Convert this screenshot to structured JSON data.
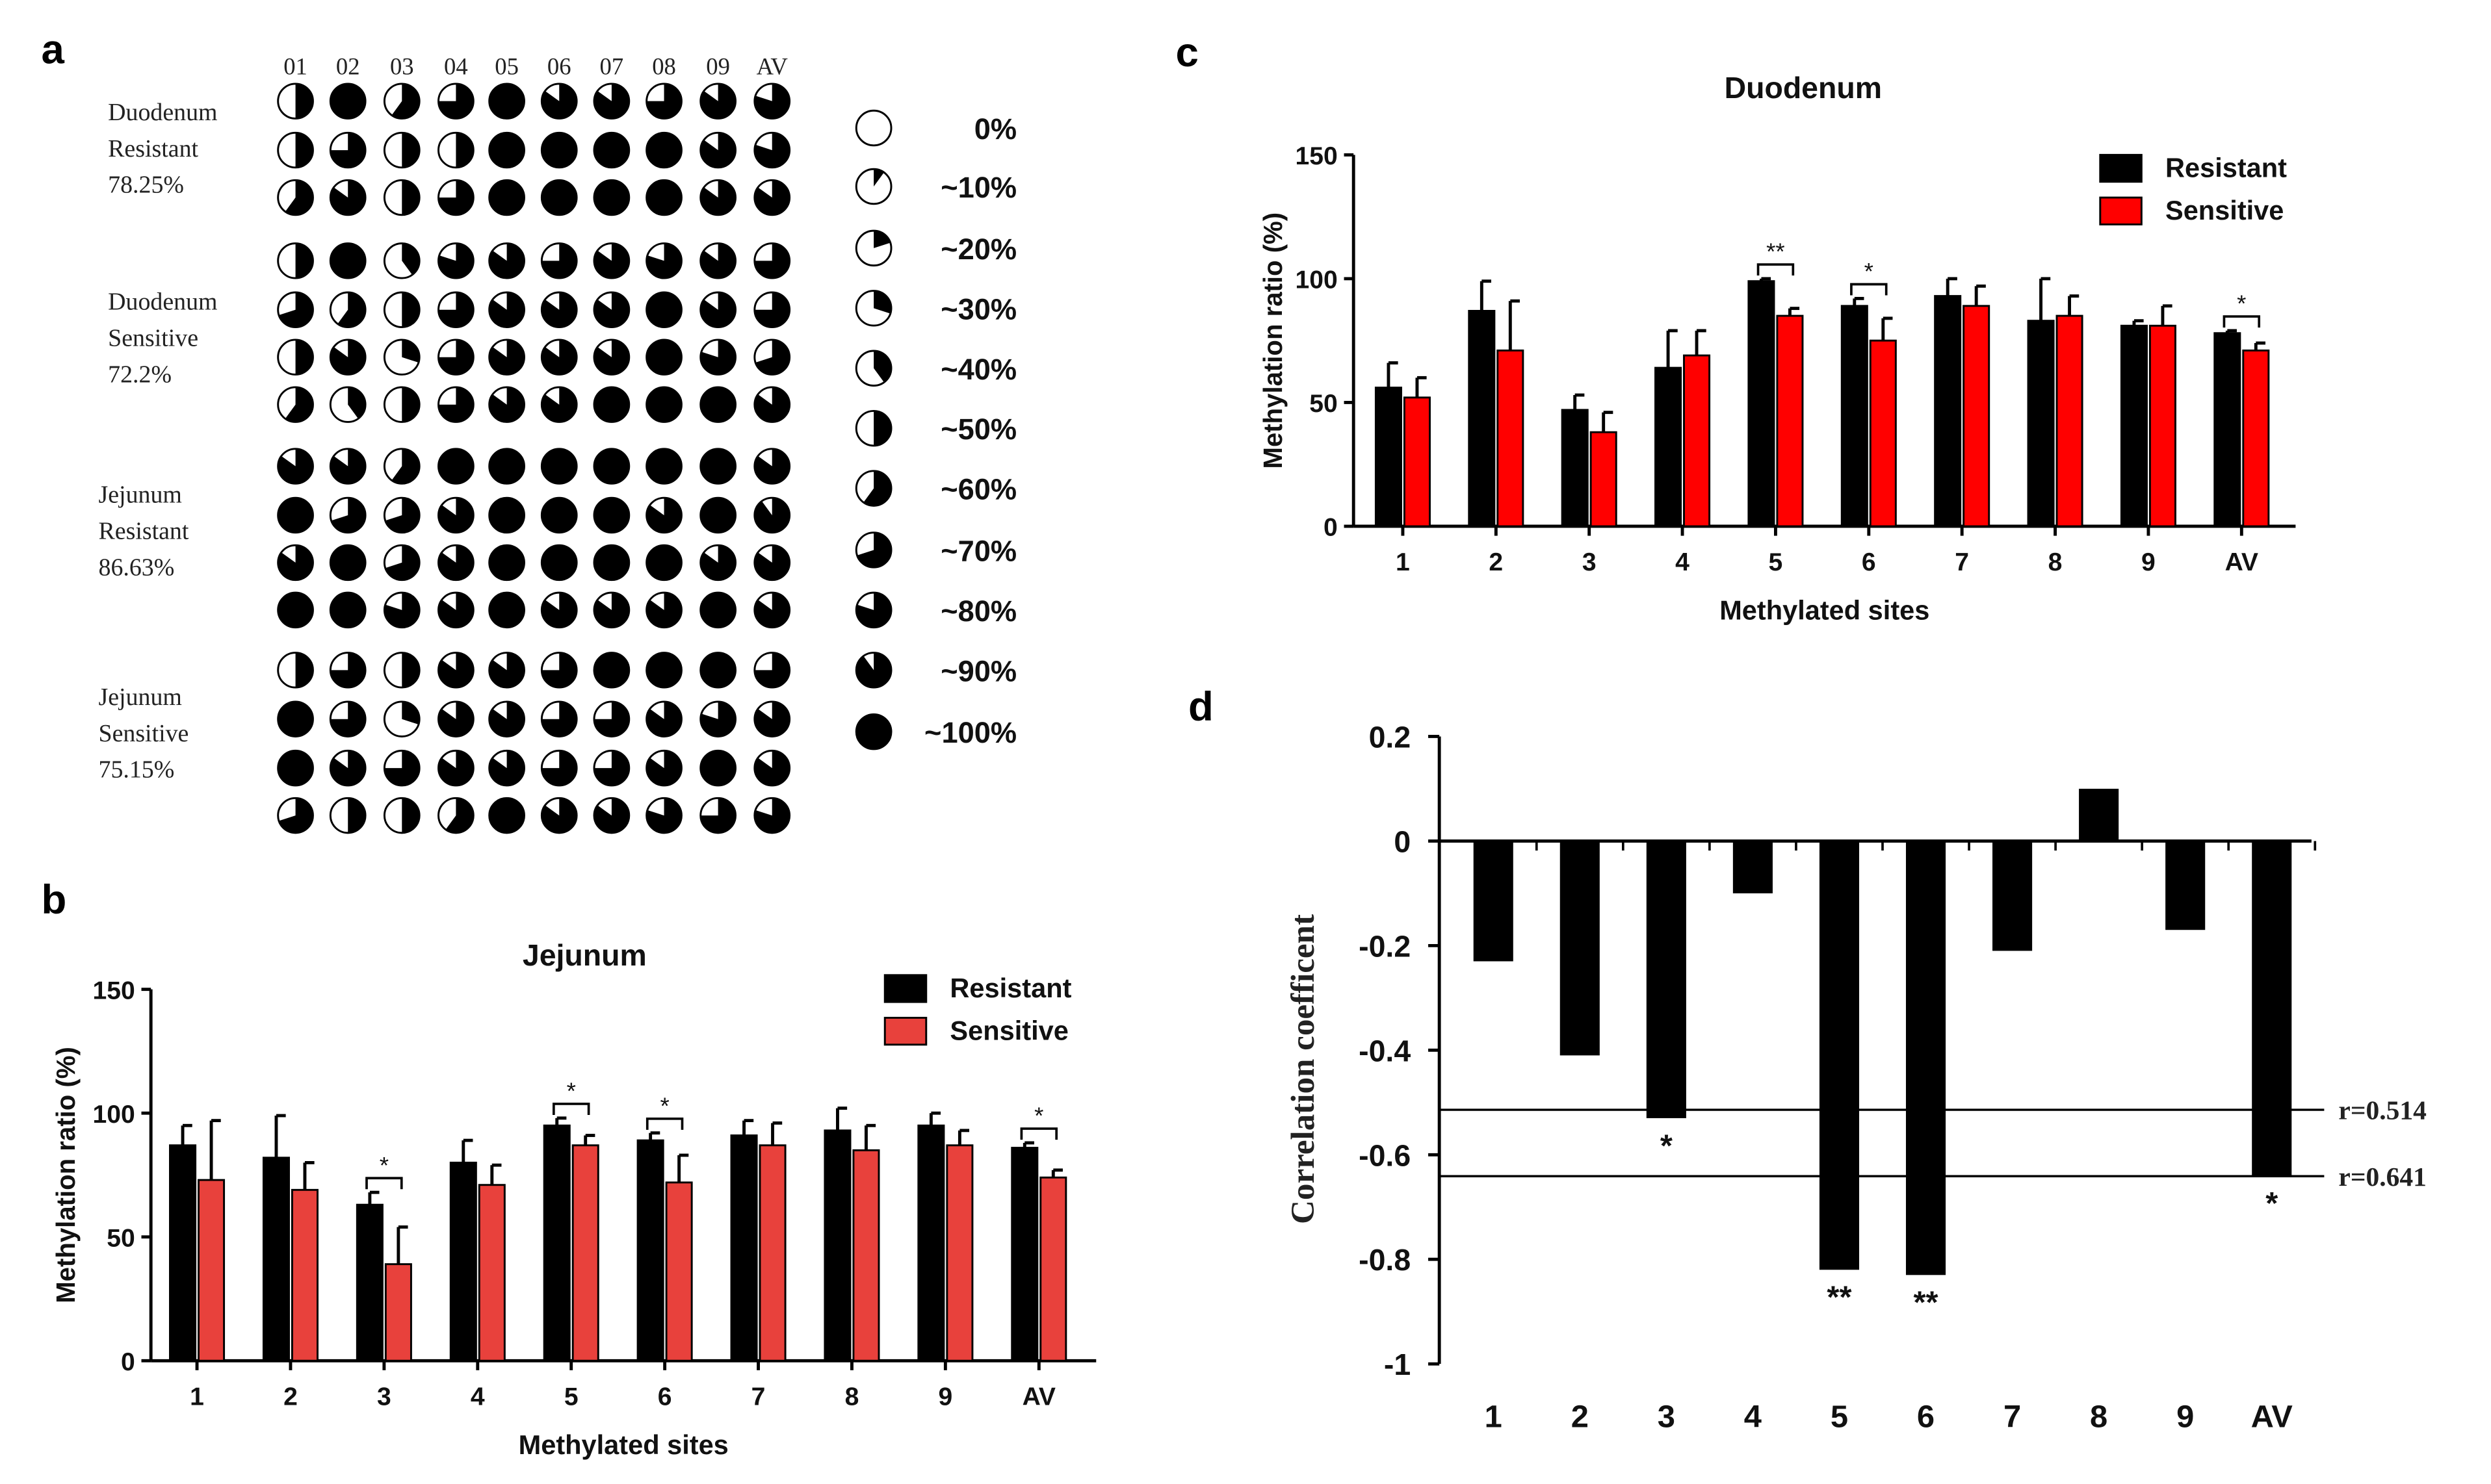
{
  "panel_letters": {
    "a": "a",
    "b": "b",
    "c": "c",
    "d": "d"
  },
  "panel_a": {
    "columns": [
      "01",
      "02",
      "03",
      "04",
      "05",
      "06",
      "07",
      "08",
      "09",
      "AV"
    ],
    "groups": [
      {
        "lines": [
          "Duodenum",
          "Resistant",
          "78.25%"
        ],
        "rows": [
          [
            50,
            100,
            60,
            75,
            100,
            85,
            85,
            75,
            85,
            80
          ],
          [
            50,
            75,
            50,
            50,
            100,
            100,
            100,
            100,
            85,
            80
          ],
          [
            60,
            85,
            50,
            75,
            100,
            100,
            100,
            100,
            85,
            85
          ]
        ]
      },
      {
        "lines": [
          "Duodenum",
          "Sensitive",
          "72.2%"
        ],
        "rows": [
          [
            50,
            100,
            40,
            80,
            85,
            75,
            85,
            80,
            85,
            75
          ],
          [
            70,
            60,
            50,
            75,
            85,
            85,
            85,
            100,
            85,
            75
          ],
          [
            50,
            85,
            30,
            75,
            85,
            85,
            85,
            100,
            80,
            70
          ],
          [
            60,
            40,
            50,
            75,
            85,
            85,
            100,
            100,
            100,
            85
          ]
        ]
      },
      {
        "lines": [
          "Jejunum",
          "Resistant",
          "86.63%"
        ],
        "rows": [
          [
            85,
            85,
            60,
            100,
            100,
            100,
            100,
            100,
            100,
            85
          ],
          [
            100,
            70,
            70,
            85,
            100,
            100,
            100,
            85,
            100,
            90
          ],
          [
            85,
            100,
            70,
            85,
            100,
            100,
            100,
            100,
            85,
            85
          ],
          [
            100,
            100,
            80,
            85,
            100,
            85,
            85,
            85,
            100,
            85
          ]
        ]
      },
      {
        "lines": [
          "Jejunum",
          "Sensitive",
          "75.15%"
        ],
        "rows": [
          [
            50,
            75,
            50,
            85,
            85,
            75,
            100,
            100,
            100,
            75
          ],
          [
            100,
            75,
            30,
            85,
            85,
            75,
            75,
            85,
            80,
            85
          ],
          [
            100,
            85,
            75,
            85,
            85,
            75,
            75,
            85,
            100,
            85
          ],
          [
            70,
            50,
            50,
            60,
            100,
            85,
            85,
            80,
            75,
            80
          ]
        ]
      }
    ],
    "legend": [
      {
        "pct": 0,
        "label": "0%"
      },
      {
        "pct": 10,
        "label": "~10%"
      },
      {
        "pct": 20,
        "label": "~20%"
      },
      {
        "pct": 30,
        "label": "~30%"
      },
      {
        "pct": 40,
        "label": "~40%"
      },
      {
        "pct": 50,
        "label": "~50%"
      },
      {
        "pct": 60,
        "label": "~60%"
      },
      {
        "pct": 70,
        "label": "~70%"
      },
      {
        "pct": 80,
        "label": "~80%"
      },
      {
        "pct": 90,
        "label": "~90%"
      },
      {
        "pct": 100,
        "label": "~100%"
      }
    ]
  },
  "chart_data": [
    {
      "panel": "b",
      "type": "bar",
      "title": "Jejunum",
      "xlabel": "Methylated sites",
      "ylabel": "Methylation ratio (%)",
      "ylim": [
        0,
        150
      ],
      "yticks": [
        0,
        50,
        100,
        150
      ],
      "categories": [
        "1",
        "2",
        "3",
        "4",
        "5",
        "6",
        "7",
        "8",
        "9",
        "AV"
      ],
      "series": [
        {
          "name": "Resistant",
          "color": "#000000",
          "values": [
            87,
            82,
            63,
            80,
            95,
            89,
            91,
            93,
            95,
            86
          ],
          "errors": [
            8,
            17,
            5,
            9,
            3,
            3,
            6,
            9,
            5,
            2
          ]
        },
        {
          "name": "Sensitive",
          "color": "#e8413c",
          "values": [
            73,
            69,
            39,
            71,
            87,
            72,
            87,
            85,
            87,
            74
          ],
          "errors": [
            24,
            11,
            15,
            8,
            4,
            11,
            9,
            10,
            6,
            3
          ]
        }
      ],
      "significance": [
        {
          "category": "3",
          "label": "*"
        },
        {
          "category": "5",
          "label": "*"
        },
        {
          "category": "6",
          "label": "*"
        },
        {
          "category": "AV",
          "label": "*"
        }
      ]
    },
    {
      "panel": "c",
      "type": "bar",
      "title": "Duodenum",
      "xlabel": "Methylated sites",
      "ylabel": "Methylation ratio (%)",
      "ylim": [
        0,
        150
      ],
      "yticks": [
        0,
        50,
        100,
        150
      ],
      "categories": [
        "1",
        "2",
        "3",
        "4",
        "5",
        "6",
        "7",
        "8",
        "9",
        "AV"
      ],
      "series": [
        {
          "name": "Resistant",
          "color": "#000000",
          "values": [
            56,
            87,
            47,
            64,
            99,
            89,
            93,
            83,
            81,
            78
          ],
          "errors": [
            10,
            12,
            6,
            15,
            1,
            3,
            7,
            17,
            2,
            1
          ]
        },
        {
          "name": "Sensitive",
          "color": "#ff0000",
          "values": [
            52,
            71,
            38,
            69,
            85,
            75,
            89,
            85,
            81,
            71
          ],
          "errors": [
            8,
            20,
            8,
            10,
            3,
            9,
            8,
            8,
            8,
            3
          ]
        }
      ],
      "significance": [
        {
          "category": "5",
          "label": "**"
        },
        {
          "category": "6",
          "label": "*"
        },
        {
          "category": "AV",
          "label": "*"
        }
      ]
    },
    {
      "panel": "d",
      "type": "bar",
      "ylabel": "Correlation  coefficent",
      "ylim": [
        -1,
        0.2
      ],
      "yticks": [
        0.2,
        0,
        -0.2,
        -0.4,
        -0.6,
        -0.8,
        -1
      ],
      "ytick_labels": [
        "0.2",
        "0",
        "-0.2",
        "-0.4",
        "-0.6",
        "-0.8",
        "-1"
      ],
      "categories": [
        "1",
        "2",
        "3",
        "4",
        "5",
        "6",
        "7",
        "8",
        "9",
        "AV"
      ],
      "values": [
        -0.23,
        -0.41,
        -0.53,
        -0.1,
        -0.82,
        -0.83,
        -0.21,
        0.1,
        -0.17,
        -0.64
      ],
      "significance": [
        "",
        "",
        "*",
        "",
        "**",
        "**",
        "",
        "",
        "",
        "*"
      ],
      "reference_lines": [
        {
          "value": -0.514,
          "label": "r=0.514"
        },
        {
          "value": -0.641,
          "label": "r=0.641"
        }
      ]
    }
  ]
}
